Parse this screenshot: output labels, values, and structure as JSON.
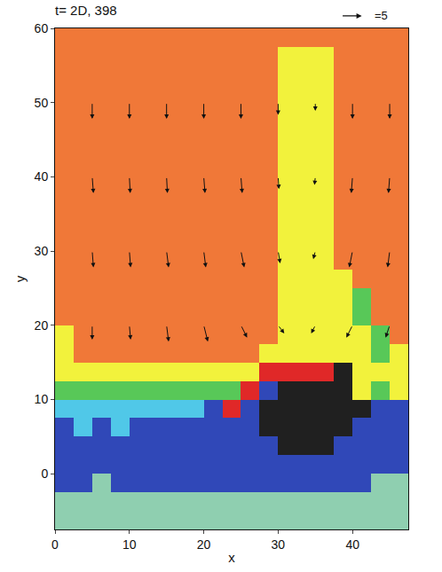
{
  "chart_data": {
    "type": "heatmap",
    "title": "t= 2D, 398",
    "x_label": "x",
    "y_label": "y",
    "xlim": [
      0,
      47.5
    ],
    "ylim": [
      -7.5,
      60
    ],
    "xticks": [
      0,
      10,
      20,
      30,
      40
    ],
    "yticks": [
      0,
      10,
      20,
      30,
      40,
      50,
      60
    ],
    "colors": [
      "#8fcfb0",
      "#3048b8",
      "#50c8e8",
      "#58c858",
      "#f2f23c",
      "#f07838",
      "#e02828",
      "#202020"
    ],
    "x": [
      1.25,
      3.75,
      6.25,
      8.75,
      11.25,
      13.75,
      16.25,
      18.75,
      21.25,
      23.75,
      26.25,
      28.75,
      31.25,
      33.75,
      36.25,
      38.75,
      41.25,
      43.75,
      46.25
    ],
    "y": [
      -6.25,
      -3.75,
      -1.25,
      1.25,
      3.75,
      6.25,
      8.75,
      11.25,
      13.75,
      16.25,
      18.75,
      21.25,
      23.75,
      26.25,
      28.75,
      31.25,
      33.75,
      36.25,
      38.75,
      41.25,
      43.75,
      46.25,
      48.75,
      51.25,
      53.75,
      56.25,
      58.75
    ],
    "cells": [
      [
        0,
        0,
        0,
        0,
        0,
        0,
        0,
        0,
        0,
        0,
        0,
        0,
        0,
        0,
        0,
        0,
        0,
        0,
        0
      ],
      [
        0,
        0,
        0,
        0,
        0,
        0,
        0,
        0,
        0,
        0,
        0,
        0,
        0,
        0,
        0,
        0,
        0,
        0,
        0
      ],
      [
        1,
        1,
        0,
        1,
        1,
        1,
        1,
        1,
        1,
        1,
        1,
        1,
        1,
        1,
        1,
        1,
        1,
        0,
        0
      ],
      [
        1,
        1,
        1,
        1,
        1,
        1,
        1,
        1,
        1,
        1,
        1,
        1,
        1,
        1,
        1,
        1,
        1,
        1,
        1
      ],
      [
        1,
        1,
        1,
        1,
        1,
        1,
        1,
        1,
        1,
        1,
        1,
        1,
        7,
        7,
        7,
        1,
        1,
        1,
        1
      ],
      [
        1,
        2,
        1,
        2,
        1,
        1,
        1,
        1,
        1,
        1,
        1,
        7,
        7,
        7,
        7,
        7,
        1,
        1,
        1
      ],
      [
        2,
        2,
        2,
        2,
        2,
        2,
        2,
        2,
        1,
        6,
        1,
        7,
        7,
        7,
        7,
        7,
        7,
        1,
        1
      ],
      [
        3,
        3,
        3,
        3,
        3,
        3,
        3,
        3,
        3,
        3,
        6,
        1,
        7,
        7,
        7,
        7,
        4,
        3,
        4
      ],
      [
        4,
        4,
        4,
        4,
        4,
        4,
        4,
        4,
        4,
        4,
        4,
        6,
        6,
        6,
        6,
        7,
        4,
        4,
        4
      ],
      [
        4,
        5,
        5,
        5,
        5,
        5,
        5,
        5,
        5,
        5,
        5,
        4,
        4,
        4,
        4,
        4,
        4,
        3,
        4
      ],
      [
        4,
        5,
        5,
        5,
        5,
        5,
        5,
        5,
        5,
        5,
        5,
        5,
        4,
        4,
        4,
        4,
        4,
        3,
        5
      ],
      [
        5,
        5,
        5,
        5,
        5,
        5,
        5,
        5,
        5,
        5,
        5,
        5,
        4,
        4,
        4,
        4,
        3,
        5,
        5
      ],
      [
        5,
        5,
        5,
        5,
        5,
        5,
        5,
        5,
        5,
        5,
        5,
        5,
        4,
        4,
        4,
        4,
        3,
        5,
        5
      ],
      [
        5,
        5,
        5,
        5,
        5,
        5,
        5,
        5,
        5,
        5,
        5,
        5,
        4,
        4,
        4,
        4,
        5,
        5,
        5
      ],
      [
        5,
        5,
        5,
        5,
        5,
        5,
        5,
        5,
        5,
        5,
        5,
        5,
        4,
        4,
        4,
        5,
        5,
        5,
        5
      ],
      [
        5,
        5,
        5,
        5,
        5,
        5,
        5,
        5,
        5,
        5,
        5,
        5,
        4,
        4,
        4,
        5,
        5,
        5,
        5
      ],
      [
        5,
        5,
        5,
        5,
        5,
        5,
        5,
        5,
        5,
        5,
        5,
        5,
        4,
        4,
        4,
        5,
        5,
        5,
        5
      ],
      [
        5,
        5,
        5,
        5,
        5,
        5,
        5,
        5,
        5,
        5,
        5,
        5,
        4,
        4,
        4,
        5,
        5,
        5,
        5
      ],
      [
        5,
        5,
        5,
        5,
        5,
        5,
        5,
        5,
        5,
        5,
        5,
        5,
        4,
        4,
        4,
        5,
        5,
        5,
        5
      ],
      [
        5,
        5,
        5,
        5,
        5,
        5,
        5,
        5,
        5,
        5,
        5,
        5,
        4,
        4,
        4,
        5,
        5,
        5,
        5
      ],
      [
        5,
        5,
        5,
        5,
        5,
        5,
        5,
        5,
        5,
        5,
        5,
        5,
        4,
        4,
        4,
        5,
        5,
        5,
        5
      ],
      [
        5,
        5,
        5,
        5,
        5,
        5,
        5,
        5,
        5,
        5,
        5,
        5,
        4,
        4,
        4,
        5,
        5,
        5,
        5
      ],
      [
        5,
        5,
        5,
        5,
        5,
        5,
        5,
        5,
        5,
        5,
        5,
        5,
        4,
        4,
        4,
        5,
        5,
        5,
        5
      ],
      [
        5,
        5,
        5,
        5,
        5,
        5,
        5,
        5,
        5,
        5,
        5,
        5,
        4,
        4,
        4,
        5,
        5,
        5,
        5
      ],
      [
        5,
        5,
        5,
        5,
        5,
        5,
        5,
        5,
        5,
        5,
        5,
        5,
        4,
        4,
        4,
        5,
        5,
        5,
        5
      ],
      [
        5,
        5,
        5,
        5,
        5,
        5,
        5,
        5,
        5,
        5,
        5,
        5,
        4,
        4,
        4,
        5,
        5,
        5,
        5
      ],
      [
        5,
        5,
        5,
        5,
        5,
        5,
        5,
        5,
        5,
        5,
        5,
        5,
        5,
        5,
        5,
        5,
        5,
        5,
        5
      ]
    ],
    "vectors": {
      "x": [
        5,
        10,
        15,
        20,
        25,
        30,
        35,
        40,
        45,
        5,
        10,
        15,
        20,
        25,
        30,
        35,
        40,
        45,
        5,
        10,
        15,
        20,
        25,
        30,
        35,
        40,
        45,
        5,
        10,
        15,
        20,
        25,
        30,
        35,
        40,
        45
      ],
      "y": [
        50,
        50,
        50,
        50,
        50,
        50,
        50,
        50,
        50,
        40,
        40,
        40,
        40,
        40,
        40,
        40,
        40,
        40,
        30,
        30,
        30,
        30,
        30,
        30,
        30,
        30,
        30,
        20,
        20,
        20,
        20,
        20,
        20,
        20,
        20,
        20
      ],
      "u": [
        0,
        0,
        0,
        0,
        0,
        0,
        0,
        0,
        0,
        0.3,
        0.2,
        0.2,
        0.3,
        0.3,
        0.2,
        -0.2,
        -0.3,
        -0.3,
        0.3,
        0.3,
        0.5,
        0.5,
        0.8,
        0.5,
        -0.5,
        -0.8,
        -0.5,
        0,
        0.3,
        0.5,
        1,
        1.5,
        1.5,
        -1,
        -1.5,
        -1
      ],
      "v": [
        -4,
        -4,
        -4,
        -4,
        -4,
        -3,
        -2,
        -4,
        -4,
        -4,
        -4,
        -4,
        -4,
        -4,
        -3,
        -2,
        -4,
        -4,
        -4,
        -4,
        -4,
        -4,
        -4,
        -3,
        -2,
        -4,
        -4,
        -3.5,
        -3.5,
        -4,
        -4,
        -3,
        -2,
        -2,
        -3,
        -3
      ]
    },
    "vector_key": {
      "value": 5,
      "label": "=5"
    }
  }
}
